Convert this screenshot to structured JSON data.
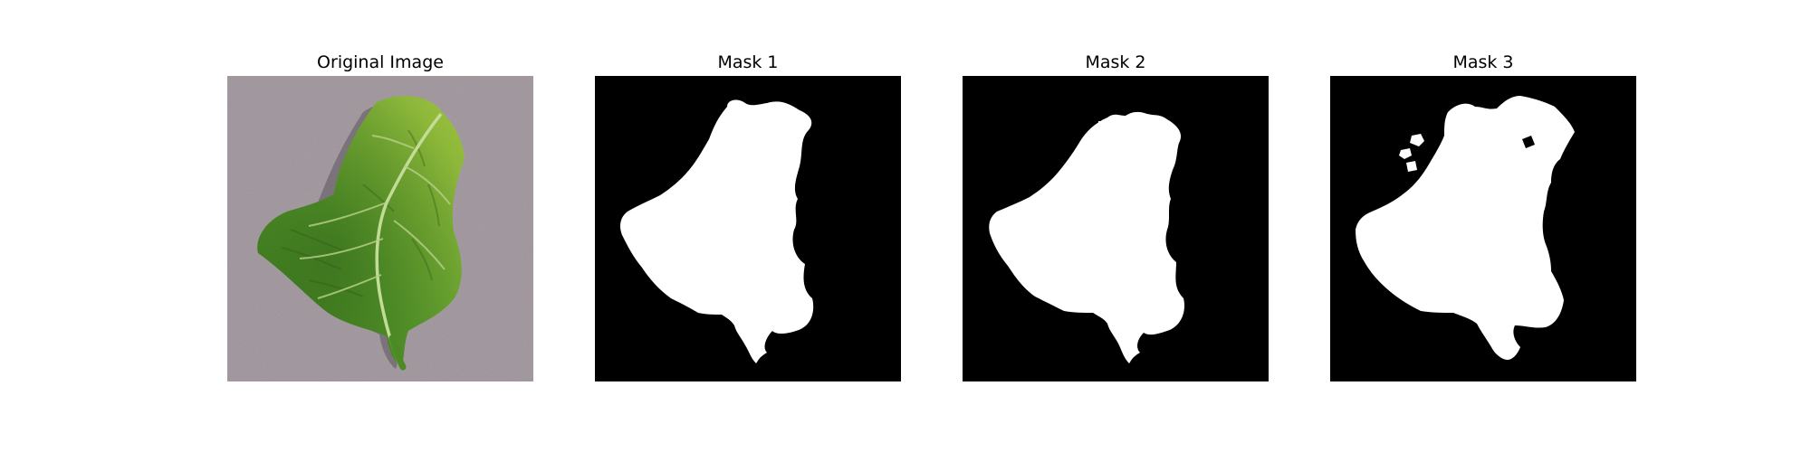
{
  "panels": [
    {
      "title": "Original Image",
      "kind": "photo"
    },
    {
      "title": "Mask 1",
      "kind": "mask"
    },
    {
      "title": "Mask 2",
      "kind": "mask"
    },
    {
      "title": "Mask 3",
      "kind": "mask"
    }
  ],
  "colors": {
    "figure_background": "#ffffff",
    "photo_background": "#9a8f96",
    "leaf_dark": "#2f6b1b",
    "leaf_mid": "#4f8f2a",
    "leaf_light": "#8bb83a",
    "leaf_shadow": "#6f6a70",
    "vein": "#b7d38a",
    "mask_background": "#000000",
    "mask_foreground": "#ffffff"
  }
}
